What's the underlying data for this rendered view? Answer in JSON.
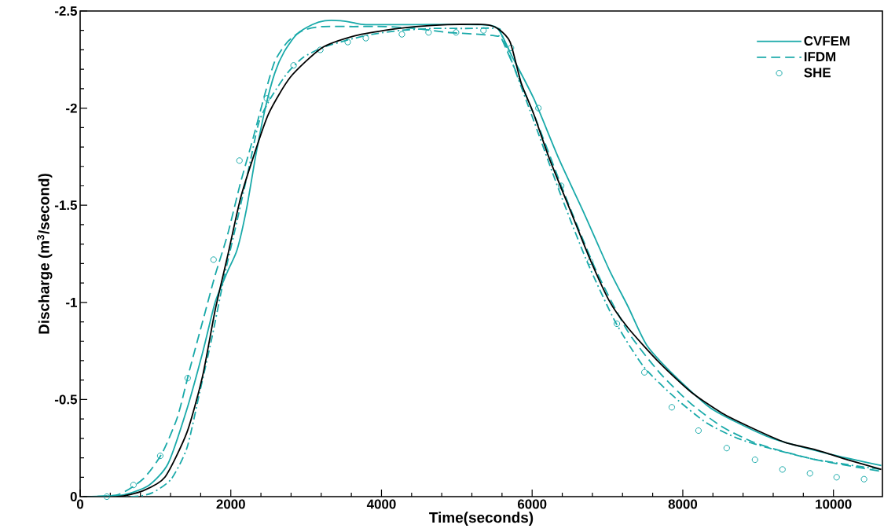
{
  "chart_data": {
    "type": "line",
    "xlabel": "Time(seconds)",
    "ylabel": "Discharge (m$^{3}$/second)",
    "xlim": [
      0,
      10650
    ],
    "ylim": [
      0,
      -2.5
    ],
    "xticks": [
      0,
      2000,
      4000,
      6000,
      8000,
      10000
    ],
    "yticks": [
      0,
      -0.5,
      -1,
      -1.5,
      -2,
      -2.5
    ],
    "legend": "top right",
    "grid": false,
    "series": [
      {
        "name": "CVFEM",
        "color": "#19a9a9",
        "line_style": "solid",
        "x": [
          42,
          583,
          917,
          1167,
          1417,
          1625,
          1792,
          1958,
          2083,
          2208,
          2333,
          2458,
          2583,
          2708,
          2875,
          3083,
          3250,
          3458,
          3625,
          3792,
          4458,
          5292,
          5542,
          5729,
          6021,
          6354,
          6688,
          7021,
          7271,
          7521,
          7896,
          8354,
          8729,
          9188,
          9938,
          10635
        ],
        "values": [
          0,
          -0.01,
          -0.06,
          -0.17,
          -0.45,
          -0.74,
          -1.0,
          -1.16,
          -1.27,
          -1.48,
          -1.76,
          -2.0,
          -2.18,
          -2.29,
          -2.38,
          -2.43,
          -2.45,
          -2.45,
          -2.44,
          -2.43,
          -2.43,
          -2.43,
          -2.41,
          -2.27,
          -2.05,
          -1.74,
          -1.46,
          -1.17,
          -0.98,
          -0.78,
          -0.62,
          -0.46,
          -0.38,
          -0.3,
          -0.22,
          -0.16
        ]
      },
      {
        "name": "IFDM",
        "color": "#19a9a9",
        "line_style": "dashed",
        "x": [
          42,
          500,
          833,
          1083,
          1292,
          1458,
          1625,
          1792,
          1958,
          2125,
          2292,
          2458,
          2583,
          2750,
          2958,
          3208,
          3625,
          4042,
          4458,
          4875,
          5292,
          5542,
          5604,
          6021,
          6438,
          6854,
          7271,
          7688,
          8104,
          8521,
          8938,
          9354,
          9771,
          10188,
          10635
        ],
        "values": [
          0,
          -0.01,
          -0.09,
          -0.22,
          -0.41,
          -0.66,
          -0.9,
          -1.14,
          -1.35,
          -1.61,
          -1.84,
          -2.08,
          -2.24,
          -2.34,
          -2.4,
          -2.42,
          -2.42,
          -2.42,
          -2.41,
          -2.39,
          -2.38,
          -2.37,
          -2.35,
          -1.97,
          -1.55,
          -1.16,
          -0.85,
          -0.64,
          -0.48,
          -0.36,
          -0.28,
          -0.23,
          -0.19,
          -0.16,
          -0.13
        ]
      },
      {
        "name": "SHE",
        "type": "scatter",
        "marker": "circle",
        "color": "#19a9a9",
        "x": [
          354,
          708,
          1063,
          1427,
          1771,
          2115,
          2479,
          2833,
          3188,
          3552,
          3792,
          4271,
          4625,
          4990,
          5354,
          5719,
          6083,
          6385,
          6771,
          7125,
          7490,
          7854,
          8208,
          8583,
          8958,
          9323,
          9688,
          10042,
          10406
        ],
        "values": [
          0,
          -0.06,
          -0.21,
          -0.61,
          -1.22,
          -1.73,
          -2.05,
          -2.22,
          -2.3,
          -2.34,
          -2.36,
          -2.38,
          -2.39,
          -2.39,
          -2.4,
          -2.31,
          -2.0,
          -1.6,
          -1.21,
          -0.89,
          -0.64,
          -0.46,
          -0.34,
          -0.25,
          -0.19,
          -0.14,
          -0.12,
          -0.1,
          -0.09
        ]
      },
      {
        "color": "#19a9a9",
        "line_style": "dashdot",
        "x": [
          42,
          708,
          958,
          1208,
          1417,
          1583,
          1750,
          1917,
          2083,
          2250,
          2375,
          2542,
          2750,
          2958,
          3208,
          3542,
          3875,
          4250,
          4667,
          5083,
          5542,
          5604,
          5979,
          6354,
          6729,
          7104,
          7479,
          7896,
          8313,
          8729,
          9146,
          9771,
          10635
        ],
        "values": [
          0,
          0,
          -0.02,
          -0.09,
          -0.25,
          -0.53,
          -0.82,
          -1.14,
          -1.42,
          -1.71,
          -1.93,
          -2.06,
          -2.18,
          -2.26,
          -2.31,
          -2.35,
          -2.38,
          -2.4,
          -2.41,
          -2.41,
          -2.41,
          -2.37,
          -1.98,
          -1.58,
          -1.21,
          -0.9,
          -0.67,
          -0.51,
          -0.38,
          -0.3,
          -0.25,
          -0.19,
          -0.14
        ]
      },
      {
        "color": "#000000",
        "line_style": "solid",
        "x": [
          42,
          500,
          833,
          1125,
          1417,
          1625,
          1792,
          1958,
          2125,
          2292,
          2500,
          2792,
          3208,
          3625,
          4042,
          4458,
          4875,
          5375,
          5542,
          5708,
          5854,
          6021,
          6229,
          6521,
          6771,
          7021,
          7271,
          7688,
          8104,
          8521,
          8938,
          9354,
          9771,
          10188,
          10635
        ],
        "values": [
          0,
          0,
          -0.03,
          -0.1,
          -0.33,
          -0.62,
          -0.96,
          -1.24,
          -1.53,
          -1.74,
          -1.97,
          -2.16,
          -2.31,
          -2.37,
          -2.4,
          -2.42,
          -2.43,
          -2.43,
          -2.41,
          -2.34,
          -2.13,
          -1.97,
          -1.74,
          -1.46,
          -1.22,
          -1.01,
          -0.87,
          -0.69,
          -0.54,
          -0.43,
          -0.35,
          -0.28,
          -0.24,
          -0.19,
          -0.14
        ]
      }
    ]
  }
}
